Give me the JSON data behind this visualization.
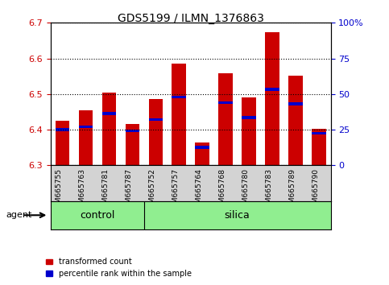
{
  "title": "GDS5199 / ILMN_1376863",
  "samples": [
    "GSM665755",
    "GSM665763",
    "GSM665781",
    "GSM665787",
    "GSM665752",
    "GSM665757",
    "GSM665764",
    "GSM665768",
    "GSM665780",
    "GSM665783",
    "GSM665789",
    "GSM665790"
  ],
  "bar_base": 6.3,
  "bar_tops": [
    6.425,
    6.455,
    6.505,
    6.415,
    6.485,
    6.585,
    6.365,
    6.558,
    6.49,
    6.673,
    6.552,
    6.403
  ],
  "percentile_values": [
    6.4,
    6.408,
    6.445,
    6.397,
    6.428,
    6.492,
    6.35,
    6.476,
    6.434,
    6.513,
    6.473,
    6.39
  ],
  "ylim": [
    6.3,
    6.7
  ],
  "y2lim": [
    0,
    100
  ],
  "yticks": [
    6.3,
    6.4,
    6.5,
    6.6,
    6.7
  ],
  "y2ticks": [
    0,
    25,
    50,
    75,
    100
  ],
  "bar_color": "#cc0000",
  "blue_color": "#0000cc",
  "control_samples": 4,
  "control_label": "control",
  "silica_label": "silica",
  "agent_label": "agent",
  "legend_red": "transformed count",
  "legend_blue": "percentile rank within the sample",
  "bg_color": "#ffffff",
  "grid_color": "#000000",
  "bar_width": 0.6,
  "group_bg": "#90ee90",
  "tick_color_left": "#cc0000",
  "tick_color_right": "#0000cc",
  "xtick_bg": "#d3d3d3"
}
